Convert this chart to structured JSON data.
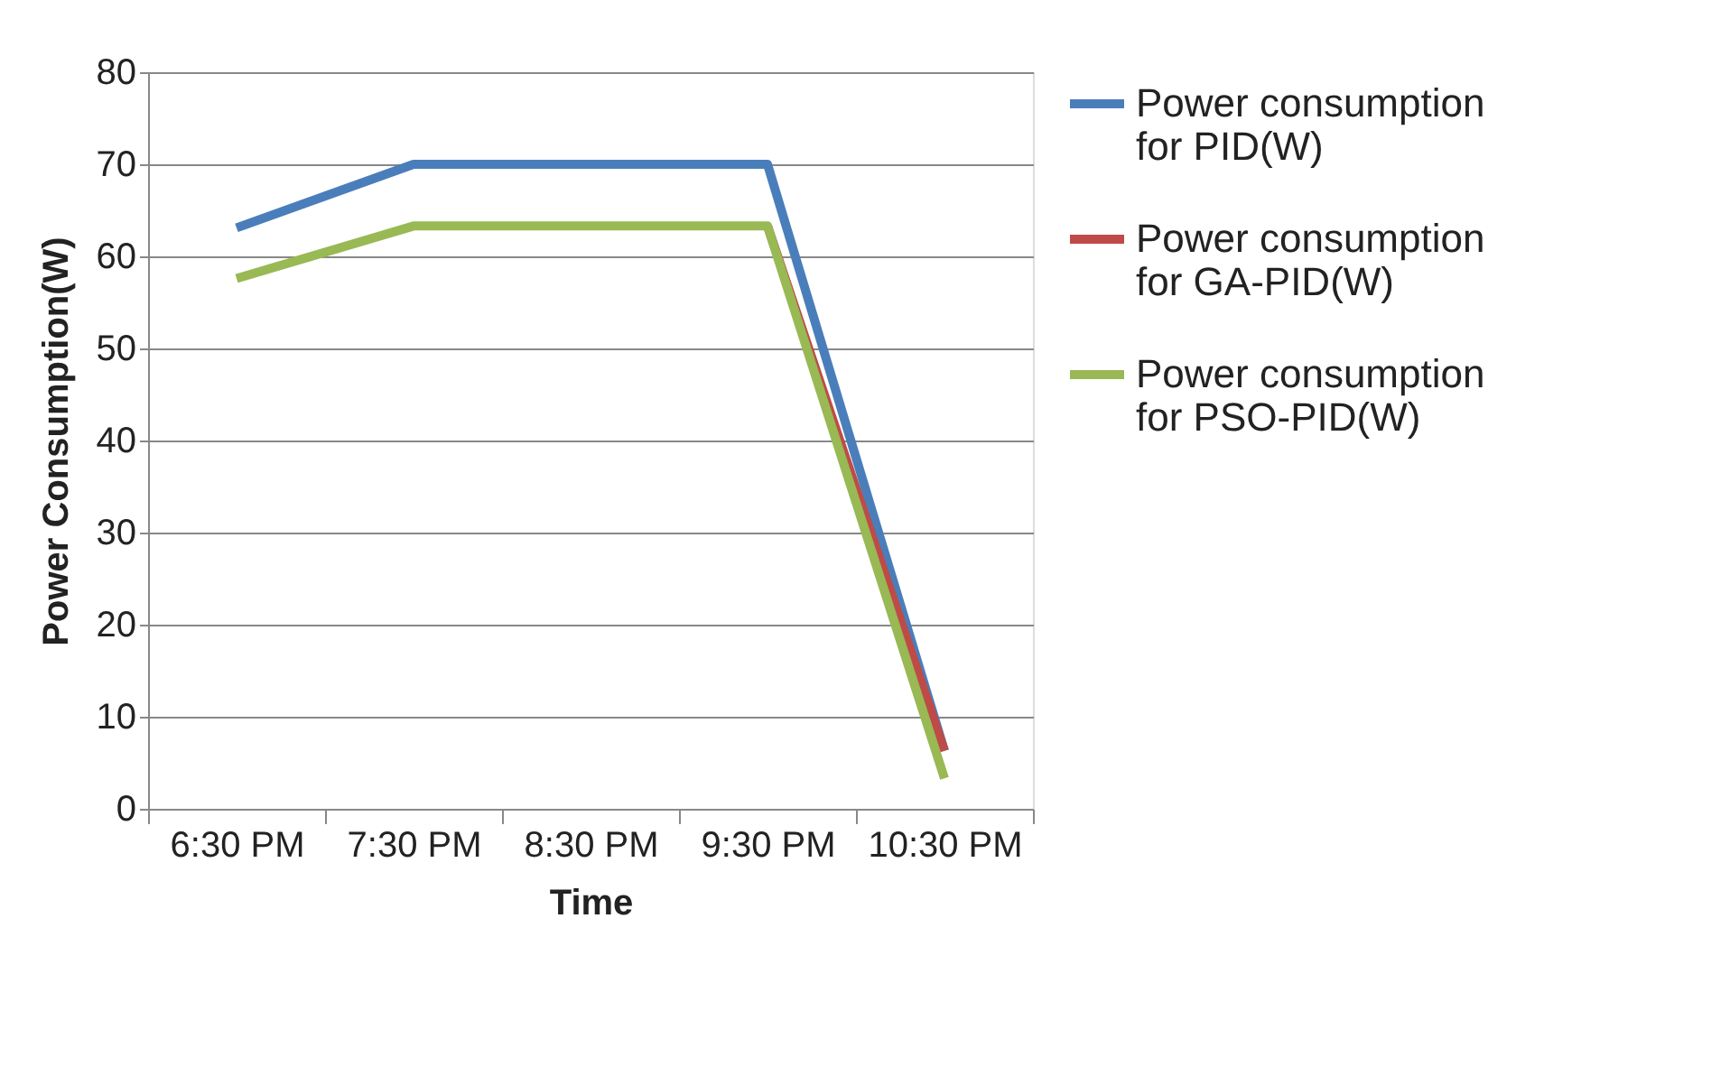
{
  "chart_data": {
    "type": "line",
    "xlabel": "Time",
    "ylabel": "Power Consumption(W)",
    "categories": [
      "6:30 PM",
      "7:30 PM",
      "8:30 PM",
      "9:30 PM",
      "10:30 PM"
    ],
    "series": [
      {
        "name": "Power consumption for PID(W)",
        "color": "#4a7ebb",
        "values": [
          63.1,
          70,
          70,
          70,
          6.3
        ]
      },
      {
        "name": "Power consumption for GA-PID(W)",
        "color": "#be4b48",
        "values": [
          null,
          null,
          null,
          63.3,
          6.3
        ]
      },
      {
        "name": "Power consumption for PSO-PID(W)",
        "color": "#98b954",
        "values": [
          57.6,
          63.3,
          63.3,
          63.3,
          3.3
        ]
      }
    ],
    "ylim": [
      0,
      80
    ],
    "yticks": [
      0,
      10,
      20,
      30,
      40,
      50,
      60,
      70,
      80
    ],
    "grid": "y",
    "legend": "right",
    "marker": "none",
    "line_style": "solid"
  }
}
